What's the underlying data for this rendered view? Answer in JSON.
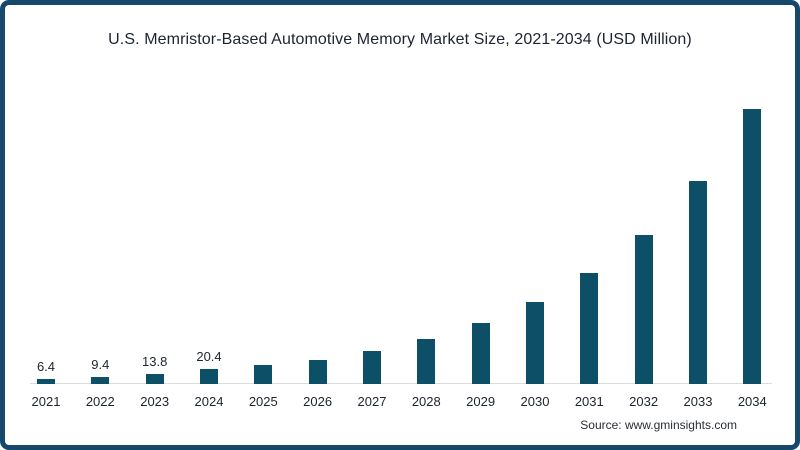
{
  "source": "Source: www.gminsights.com",
  "colors": {
    "bar": "#0d4f66",
    "frame_border": "#15486b",
    "text": "#1c2430",
    "axis_line": "#d9dce0",
    "background": "#ffffff"
  },
  "chart_data": {
    "type": "bar",
    "title": "U.S. Memristor-Based Automotive Memory Market Size, 2021-2034 (USD Million)",
    "xlabel": "",
    "ylabel": "",
    "categories": [
      "2021",
      "2022",
      "2023",
      "2024",
      "2025",
      "2026",
      "2027",
      "2028",
      "2029",
      "2030",
      "2031",
      "2032",
      "2033",
      "2034"
    ],
    "values": [
      6.4,
      9.4,
      13.8,
      20.4,
      26,
      33.5,
      45.5,
      62.5,
      85,
      114,
      154,
      207,
      282,
      382
    ],
    "data_labels": [
      "6.4",
      "9.4",
      "13.8",
      "20.4",
      "",
      "",
      "",
      "",
      "",
      "",
      "",
      "",
      "",
      ""
    ],
    "ylim": [
      0,
      400
    ],
    "grid": false,
    "legend": false,
    "source_label": "Source: www.gminsights.com"
  }
}
